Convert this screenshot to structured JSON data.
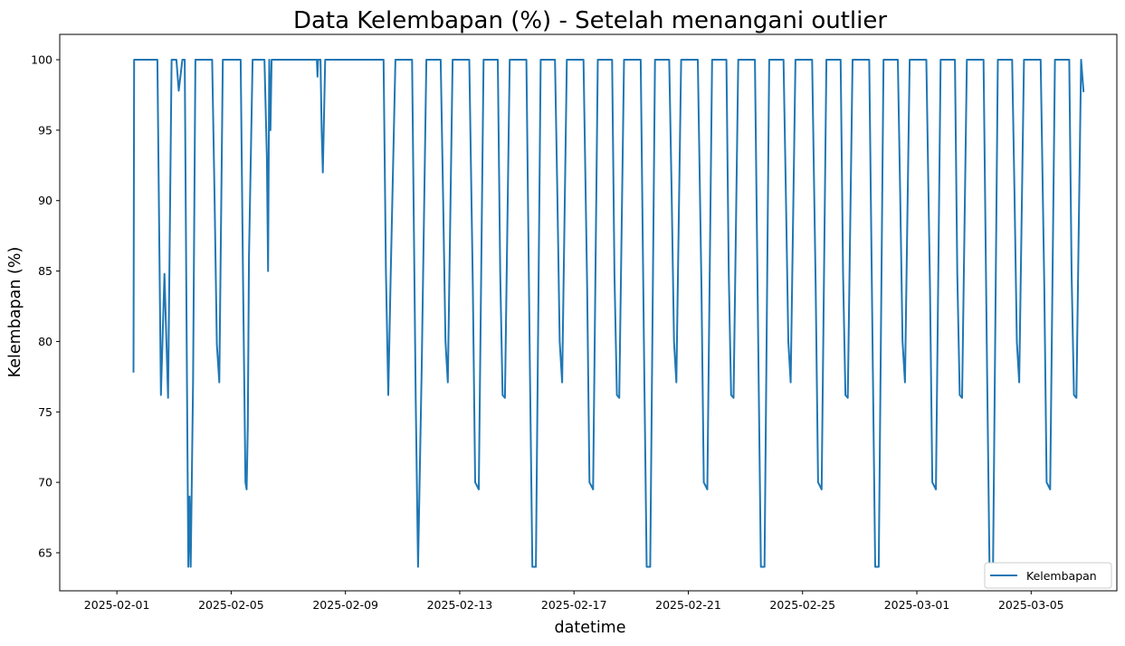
{
  "chart_data": {
    "type": "line",
    "title": "Data Kelembapan (%) - Setelah menangani outlier",
    "xlabel": "datetime",
    "ylabel": "Kelembapan (%)",
    "x_range": [
      "2025-01-30",
      "2025-03-08"
    ],
    "ylim": [
      62.3,
      101.8
    ],
    "yticks": [
      65,
      70,
      75,
      80,
      85,
      90,
      95,
      100
    ],
    "xticks": [
      "2025-02-01",
      "2025-02-05",
      "2025-02-09",
      "2025-02-13",
      "2025-02-17",
      "2025-02-21",
      "2025-02-25",
      "2025-03-01",
      "2025-03-05"
    ],
    "grid": false,
    "legend": {
      "location": "lower-right",
      "entries": [
        "Kelembapan"
      ]
    },
    "series": [
      {
        "name": "Kelembapan",
        "color": "#1f77b4",
        "x": [
          "2025-02-01T14:00",
          "2025-02-01T14:30",
          "2025-02-01T15:00",
          "2025-02-02T06:00",
          "2025-02-02T10:00",
          "2025-02-02T13:00",
          "2025-02-02T16:00",
          "2025-02-02T19:00",
          "2025-02-02T22:00",
          "2025-02-03T02:00",
          "2025-02-03T04:00",
          "2025-02-03T07:00",
          "2025-02-03T09:00",
          "2025-02-03T11:00",
          "2025-02-03T12:00",
          "2025-02-03T13:00",
          "2025-02-03T14:00",
          "2025-02-03T16:00",
          "2025-02-03T18:00",
          "2025-02-03T20:00",
          "2025-02-03T22:00",
          "2025-02-04T04:00",
          "2025-02-04T08:00",
          "2025-02-04T10:00",
          "2025-02-04T12:00",
          "2025-02-04T14:00",
          "2025-02-04T17:00",
          "2025-02-04T20:00",
          "2025-02-05T04:00",
          "2025-02-05T08:00",
          "2025-02-05T10:00",
          "2025-02-05T12:00",
          "2025-02-05T13:00",
          "2025-02-05T14:00",
          "2025-02-05T15:00",
          "2025-02-05T18:00",
          "2025-02-06T00:00",
          "2025-02-06T04:00",
          "2025-02-06T06:00",
          "2025-02-06T07:00",
          "2025-02-06T08:00",
          "2025-02-06T09:00",
          "2025-02-06T10:00",
          "2025-02-06T12:00",
          "2025-02-07T22:00",
          "2025-02-08T00:00",
          "2025-02-08T00:30",
          "2025-02-08T01:00",
          "2025-02-08T03:00",
          "2025-02-08T04:00",
          "2025-02-08T05:00",
          "2025-02-08T07:00",
          "2025-02-09T22:00",
          "2025-02-10T04:00",
          "2025-02-10T08:00",
          "2025-02-10T10:00",
          "2025-02-10T12:00",
          "2025-02-10T14:00",
          "2025-02-10T18:00",
          "2025-02-11T04:00",
          "2025-02-11T08:00",
          "2025-02-11T11:00",
          "2025-02-11T13:00",
          "2025-02-11T16:00",
          "2025-02-11T20:00",
          "2025-02-12T04:00",
          "2025-02-12T08:00",
          "2025-02-12T10:00",
          "2025-02-12T12:00",
          "2025-02-12T14:00",
          "2025-02-12T18:00",
          "2025-02-13T04:00",
          "2025-02-13T08:00",
          "2025-02-13T11:00",
          "2025-02-13T13:00",
          "2025-02-13T16:00",
          "2025-02-13T20:00",
          "2025-02-14T04:00",
          "2025-02-14T08:00",
          "2025-02-14T10:00",
          "2025-02-14T12:00",
          "2025-02-14T14:00",
          "2025-02-14T18:00",
          "2025-02-15T04:00",
          "2025-02-15T08:00",
          "2025-02-15T11:00",
          "2025-02-15T13:00",
          "2025-02-15T16:00",
          "2025-02-15T20:00",
          "2025-02-16T04:00",
          "2025-02-16T08:00",
          "2025-02-16T10:00",
          "2025-02-16T12:00",
          "2025-02-16T14:00",
          "2025-02-16T18:00",
          "2025-02-17T04:00",
          "2025-02-17T08:00",
          "2025-02-17T11:00",
          "2025-02-17T13:00",
          "2025-02-17T16:00",
          "2025-02-17T20:00",
          "2025-02-18T04:00",
          "2025-02-18T08:00",
          "2025-02-18T10:00",
          "2025-02-18T12:00",
          "2025-02-18T14:00",
          "2025-02-18T18:00",
          "2025-02-19T04:00",
          "2025-02-19T08:00",
          "2025-02-19T11:00",
          "2025-02-19T13:00",
          "2025-02-19T16:00",
          "2025-02-19T20:00",
          "2025-02-20T04:00",
          "2025-02-20T08:00",
          "2025-02-20T10:00",
          "2025-02-20T12:00",
          "2025-02-20T14:00",
          "2025-02-20T18:00",
          "2025-02-21T04:00",
          "2025-02-21T08:00",
          "2025-02-21T11:00",
          "2025-02-21T13:00",
          "2025-02-21T16:00",
          "2025-02-21T20:00",
          "2025-02-22T04:00",
          "2025-02-22T08:00",
          "2025-02-22T10:00",
          "2025-02-22T12:00",
          "2025-02-22T14:00",
          "2025-02-22T18:00",
          "2025-02-23T04:00",
          "2025-02-23T08:00",
          "2025-02-23T11:00",
          "2025-02-23T13:00",
          "2025-02-23T16:00",
          "2025-02-23T20:00",
          "2025-02-24T04:00",
          "2025-02-24T08:00",
          "2025-02-24T10:00",
          "2025-02-24T12:00",
          "2025-02-24T14:00",
          "2025-02-24T18:00",
          "2025-02-25T04:00",
          "2025-02-25T08:00",
          "2025-02-25T11:00",
          "2025-02-25T13:00",
          "2025-02-25T16:00",
          "2025-02-25T20:00",
          "2025-02-26T04:00",
          "2025-02-26T08:00",
          "2025-02-26T10:00",
          "2025-02-26T12:00",
          "2025-02-26T14:00",
          "2025-02-26T18:00",
          "2025-02-27T04:00",
          "2025-02-27T08:00",
          "2025-02-27T11:00",
          "2025-02-27T13:00",
          "2025-02-27T16:00",
          "2025-02-27T20:00",
          "2025-02-28T04:00",
          "2025-02-28T08:00",
          "2025-02-28T10:00",
          "2025-02-28T12:00",
          "2025-02-28T14:00",
          "2025-02-28T18:00",
          "2025-03-01T04:00",
          "2025-03-01T08:00",
          "2025-03-01T11:00",
          "2025-03-01T13:00",
          "2025-03-01T16:00",
          "2025-03-01T20:00",
          "2025-03-02T04:00",
          "2025-03-02T08:00",
          "2025-03-02T10:00",
          "2025-03-02T12:00",
          "2025-03-02T14:00",
          "2025-03-02T18:00",
          "2025-03-03T04:00",
          "2025-03-03T08:00",
          "2025-03-03T11:00",
          "2025-03-03T13:00",
          "2025-03-03T16:00",
          "2025-03-03T20:00",
          "2025-03-04T04:00",
          "2025-03-04T08:00",
          "2025-03-04T10:00",
          "2025-03-04T12:00",
          "2025-03-04T14:00",
          "2025-03-04T18:00",
          "2025-03-05T04:00",
          "2025-03-05T08:00",
          "2025-03-05T11:00",
          "2025-03-05T13:00",
          "2025-03-05T16:00",
          "2025-03-05T20:00",
          "2025-03-06T04:00",
          "2025-03-06T08:00",
          "2025-03-06T10:00",
          "2025-03-06T12:00",
          "2025-03-06T14:00",
          "2025-03-06T18:00",
          "2025-03-06T20:00"
        ],
        "y": [
          77.8,
          100,
          100,
          100,
          100,
          76.2,
          84.8,
          76.0,
          100,
          100,
          97.8,
          100,
          100,
          76.0,
          64.0,
          69.0,
          64.0,
          77.0,
          100,
          100,
          100,
          100,
          100,
          90.5,
          79.8,
          77.1,
          100,
          100,
          100,
          100,
          84.0,
          70.0,
          69.5,
          74.0,
          86.0,
          100,
          100,
          100,
          93.0,
          85.0,
          100,
          95.0,
          100,
          100,
          100,
          100,
          98.8,
          100,
          100,
          95.0,
          92.0,
          100,
          100,
          100,
          100,
          85.0,
          76.2,
          84.8,
          100,
          100,
          100,
          76.0,
          64.0,
          78.0,
          100,
          100,
          100,
          90.5,
          80.0,
          77.1,
          100,
          100,
          100,
          84.0,
          70.0,
          69.5,
          100,
          100,
          100,
          84.8,
          76.2,
          76.0,
          100,
          100,
          100,
          78.0,
          64.0,
          64.0,
          100,
          100,
          100,
          90.5,
          80.0,
          77.1,
          100,
          100,
          100,
          84.0,
          70.0,
          69.5,
          100,
          100,
          100,
          84.8,
          76.2,
          76.0,
          100,
          100,
          100,
          78.0,
          64.0,
          64.0,
          100,
          100,
          100,
          90.5,
          80.0,
          77.1,
          100,
          100,
          100,
          84.0,
          70.0,
          69.5,
          100,
          100,
          100,
          84.8,
          76.2,
          76.0,
          100,
          100,
          100,
          78.0,
          64.0,
          64.0,
          100,
          100,
          100,
          90.5,
          80.0,
          77.1,
          100,
          100,
          100,
          84.0,
          70.0,
          69.5,
          100,
          100,
          100,
          84.8,
          76.2,
          76.0,
          100,
          100,
          100,
          78.0,
          64.0,
          64.0,
          100,
          100,
          100,
          90.5,
          80.0,
          77.1,
          100,
          100,
          100,
          84.0,
          70.0,
          69.5,
          100,
          100,
          100,
          84.8,
          76.2,
          76.0,
          100,
          100,
          100,
          78.0,
          64.0,
          64.0,
          100,
          100,
          100,
          90.5,
          80.0,
          77.1,
          100,
          100,
          100,
          84.0,
          70.0,
          69.5,
          100,
          100,
          100,
          84.8,
          76.2,
          76.0,
          100,
          97.7
        ]
      }
    ]
  }
}
